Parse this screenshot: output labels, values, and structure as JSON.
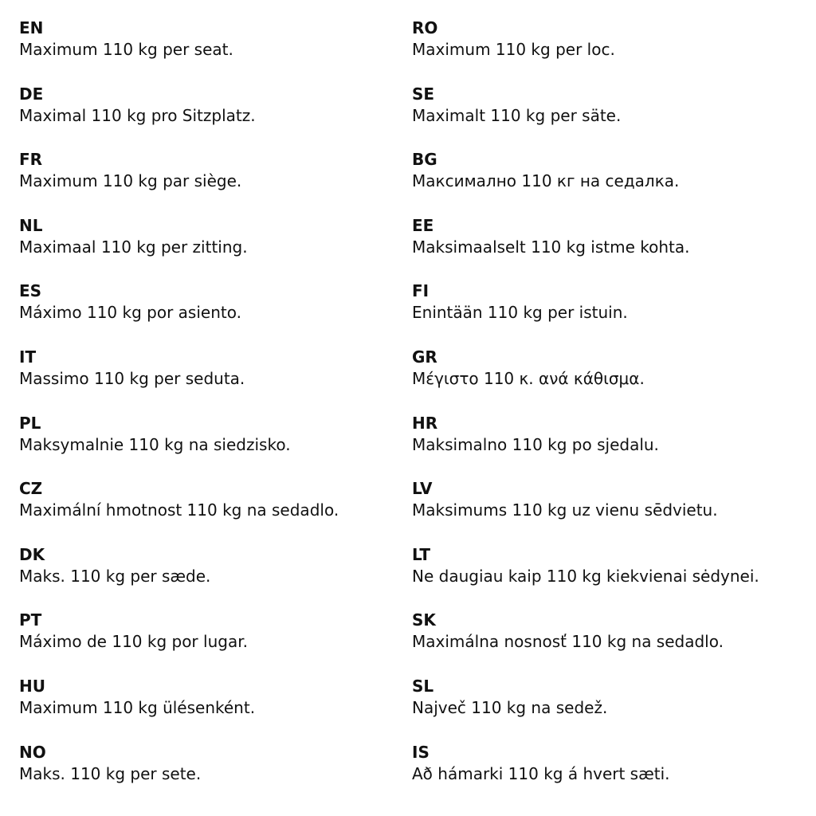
{
  "columns": [
    [
      {
        "code": "EN",
        "text": "Maximum 110 kg per seat."
      },
      {
        "code": "DE",
        "text": "Maximal 110 kg pro Sitzplatz."
      },
      {
        "code": "FR",
        "text": "Maximum 110 kg par siège."
      },
      {
        "code": "NL",
        "text": "Maximaal 110 kg per zitting."
      },
      {
        "code": "ES",
        "text": "Máximo 110 kg por asiento."
      },
      {
        "code": "IT",
        "text": "Massimo 110 kg per seduta."
      },
      {
        "code": "PL",
        "text": "Maksymalnie 110 kg na siedzisko."
      },
      {
        "code": "CZ",
        "text": "Maximální hmotnost 110 kg na sedadlo."
      },
      {
        "code": "DK",
        "text": "Maks. 110 kg per sæde."
      },
      {
        "code": "PT",
        "text": "Máximo de 110 kg por lugar."
      },
      {
        "code": "HU",
        "text": "Maximum 110 kg ülésenként."
      },
      {
        "code": "NO",
        "text": "Maks. 110 kg per sete."
      }
    ],
    [
      {
        "code": "RO",
        "text": "Maximum 110 kg per loc."
      },
      {
        "code": "SE",
        "text": "Maximalt 110 kg per säte."
      },
      {
        "code": "BG",
        "text": "Максимално 110 кг на седалка."
      },
      {
        "code": "EE",
        "text": "Maksimaalselt 110 kg istme kohta."
      },
      {
        "code": "FI",
        "text": "Enintään 110 kg per istuin."
      },
      {
        "code": "GR",
        "text": "Μέγιστο 110 κ. ανά κάθισμα."
      },
      {
        "code": "HR",
        "text": "Maksimalno 110 kg po sjedalu."
      },
      {
        "code": "LV",
        "text": "Maksimums 110 kg uz vienu sēdvietu."
      },
      {
        "code": "LT",
        "text": "Ne daugiau kaip 110 kg kiekvienai sėdynei."
      },
      {
        "code": "SK",
        "text": "Maximálna nosnosť 110 kg na sedadlo."
      },
      {
        "code": "SL",
        "text": "Največ 110 kg na sedež."
      },
      {
        "code": "IS",
        "text": "Að hámarki 110 kg á hvert sæti."
      }
    ]
  ]
}
